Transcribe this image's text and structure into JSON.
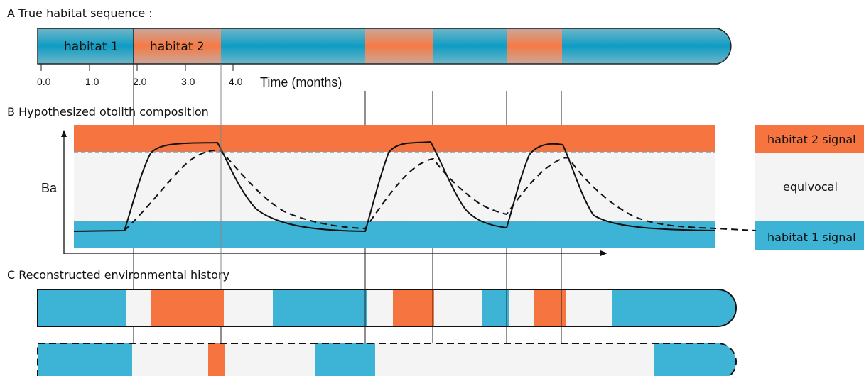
{
  "sections": {
    "a": "A  True habitat sequence :",
    "b": "B  Hypothesized otolith composition",
    "c": "C  Reconstructed environmental history"
  },
  "panel_a": {
    "habitat1_label": "habitat 1",
    "habitat2_label": "habitat 2",
    "time_ticks": [
      "0.0",
      "1.0",
      "2.0",
      "3.0",
      "4.0"
    ],
    "time_axis_label": "Time (months)"
  },
  "panel_b": {
    "ylabel": "Ba",
    "legend": {
      "habitat2": "habitat 2 signal",
      "equivocal": "equivocal",
      "habitat1": "habitat 1 signal"
    }
  },
  "colors": {
    "habitat1": "#1f9fc3",
    "habitat1_dark": "#1496bd",
    "habitat2": "#f27a45",
    "equivocal": "#f4f4f4",
    "band_blue": "#3db4d6",
    "band_orange": "#f5743f"
  }
}
